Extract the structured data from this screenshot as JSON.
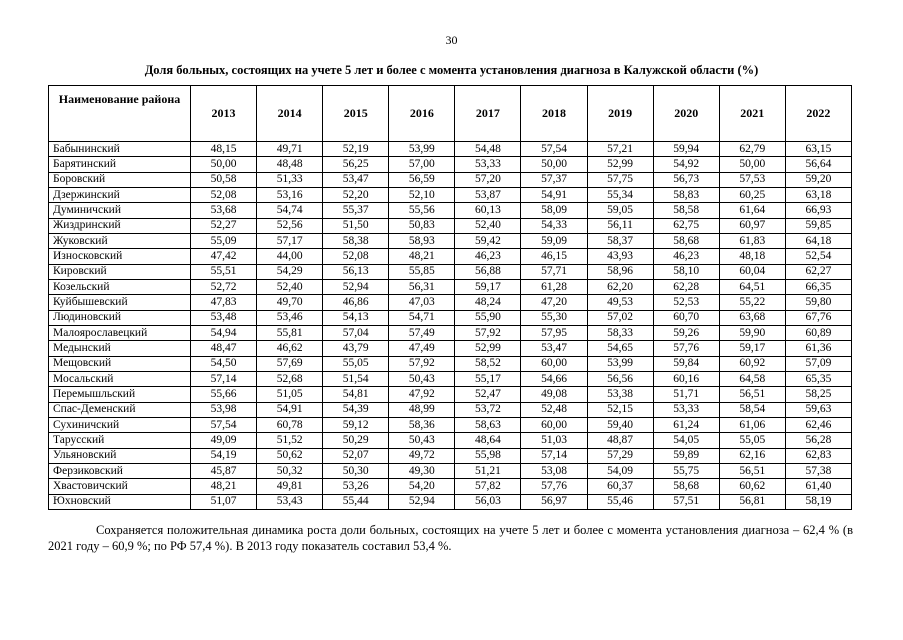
{
  "page": {
    "number": "30"
  },
  "title": "Доля больных, состоящих на учете 5 лет и более с момента установления диагноза в Калужской области (%)",
  "table": {
    "name_header": "Наименование района",
    "years": [
      "2013",
      "2014",
      "2015",
      "2016",
      "2017",
      "2018",
      "2019",
      "2020",
      "2021",
      "2022"
    ],
    "rows": [
      {
        "district": "Бабынинский",
        "values": [
          "48,15",
          "49,71",
          "52,19",
          "53,99",
          "54,48",
          "57,54",
          "57,21",
          "59,94",
          "62,79",
          "63,15"
        ]
      },
      {
        "district": "Барятинский",
        "values": [
          "50,00",
          "48,48",
          "56,25",
          "57,00",
          "53,33",
          "50,00",
          "52,99",
          "54,92",
          "50,00",
          "56,64"
        ]
      },
      {
        "district": "Боровский",
        "values": [
          "50,58",
          "51,33",
          "53,47",
          "56,59",
          "57,20",
          "57,37",
          "57,75",
          "56,73",
          "57,53",
          "59,20"
        ]
      },
      {
        "district": "Дзержинский",
        "values": [
          "52,08",
          "53,16",
          "52,20",
          "52,10",
          "53,87",
          "54,91",
          "55,34",
          "58,83",
          "60,25",
          "63,18"
        ]
      },
      {
        "district": "Думиничский",
        "values": [
          "53,68",
          "54,74",
          "55,37",
          "55,56",
          "60,13",
          "58,09",
          "59,05",
          "58,58",
          "61,64",
          "66,93"
        ]
      },
      {
        "district": "Жиздринский",
        "values": [
          "52,27",
          "52,56",
          "51,50",
          "50,83",
          "52,40",
          "54,33",
          "56,11",
          "62,75",
          "60,97",
          "59,85"
        ]
      },
      {
        "district": "Жуковский",
        "values": [
          "55,09",
          "57,17",
          "58,38",
          "58,93",
          "59,42",
          "59,09",
          "58,37",
          "58,68",
          "61,83",
          "64,18"
        ]
      },
      {
        "district": "Износковский",
        "values": [
          "47,42",
          "44,00",
          "52,08",
          "48,21",
          "46,23",
          "46,15",
          "43,93",
          "46,23",
          "48,18",
          "52,54"
        ]
      },
      {
        "district": "Кировский",
        "values": [
          "55,51",
          "54,29",
          "56,13",
          "55,85",
          "56,88",
          "57,71",
          "58,96",
          "58,10",
          "60,04",
          "62,27"
        ]
      },
      {
        "district": "Козельский",
        "values": [
          "52,72",
          "52,40",
          "52,94",
          "56,31",
          "59,17",
          "61,28",
          "62,20",
          "62,28",
          "64,51",
          "66,35"
        ]
      },
      {
        "district": "Куйбышевский",
        "values": [
          "47,83",
          "49,70",
          "46,86",
          "47,03",
          "48,24",
          "47,20",
          "49,53",
          "52,53",
          "55,22",
          "59,80"
        ]
      },
      {
        "district": "Людиновский",
        "values": [
          "53,48",
          "53,46",
          "54,13",
          "54,71",
          "55,90",
          "55,30",
          "57,02",
          "60,70",
          "63,68",
          "67,76"
        ]
      },
      {
        "district": "Малоярославецкий",
        "values": [
          "54,94",
          "55,81",
          "57,04",
          "57,49",
          "57,92",
          "57,95",
          "58,33",
          "59,26",
          "59,90",
          "60,89"
        ]
      },
      {
        "district": "Медынский",
        "values": [
          "48,47",
          "46,62",
          "43,79",
          "47,49",
          "52,99",
          "53,47",
          "54,65",
          "57,76",
          "59,17",
          "61,36"
        ]
      },
      {
        "district": "Мещовский",
        "values": [
          "54,50",
          "57,69",
          "55,05",
          "57,92",
          "58,52",
          "60,00",
          "53,99",
          "59,84",
          "60,92",
          "57,09"
        ]
      },
      {
        "district": "Мосальский",
        "values": [
          "57,14",
          "52,68",
          "51,54",
          "50,43",
          "55,17",
          "54,66",
          "56,56",
          "60,16",
          "64,58",
          "65,35"
        ]
      },
      {
        "district": "Перемышльский",
        "values": [
          "55,66",
          "51,05",
          "54,81",
          "47,92",
          "52,47",
          "49,08",
          "53,38",
          "51,71",
          "56,51",
          "58,25"
        ]
      },
      {
        "district": "Спас-Деменский",
        "values": [
          "53,98",
          "54,91",
          "54,39",
          "48,99",
          "53,72",
          "52,48",
          "52,15",
          "53,33",
          "58,54",
          "59,63"
        ]
      },
      {
        "district": "Сухиничский",
        "values": [
          "57,54",
          "60,78",
          "59,12",
          "58,36",
          "58,63",
          "60,00",
          "59,40",
          "61,24",
          "61,06",
          "62,46"
        ]
      },
      {
        "district": "Тарусский",
        "values": [
          "49,09",
          "51,52",
          "50,29",
          "50,43",
          "48,64",
          "51,03",
          "48,87",
          "54,05",
          "55,05",
          "56,28"
        ]
      },
      {
        "district": "Ульяновский",
        "values": [
          "54,19",
          "50,62",
          "52,07",
          "49,72",
          "55,98",
          "57,14",
          "57,29",
          "59,89",
          "62,16",
          "62,83"
        ]
      },
      {
        "district": "Ферзиковский",
        "values": [
          "45,87",
          "50,32",
          "50,30",
          "49,30",
          "51,21",
          "53,08",
          "54,09",
          "55,75",
          "56,51",
          "57,38"
        ]
      },
      {
        "district": "Хвастовичский",
        "values": [
          "48,21",
          "49,81",
          "53,26",
          "54,20",
          "57,82",
          "57,76",
          "60,37",
          "58,68",
          "60,62",
          "61,40"
        ]
      },
      {
        "district": "Юхновский",
        "values": [
          "51,07",
          "53,43",
          "55,44",
          "52,94",
          "56,03",
          "56,97",
          "55,46",
          "57,51",
          "56,81",
          "58,19"
        ]
      }
    ]
  },
  "footer": {
    "text": "Сохраняется положительная динамика роста доли больных, состоящих на учете 5 лет и более с момента установления диагноза – 62,4 % (в 2021 году – 60,9 %; по РФ 57,4 %). В 2013 году показатель составил 53,4 %."
  }
}
